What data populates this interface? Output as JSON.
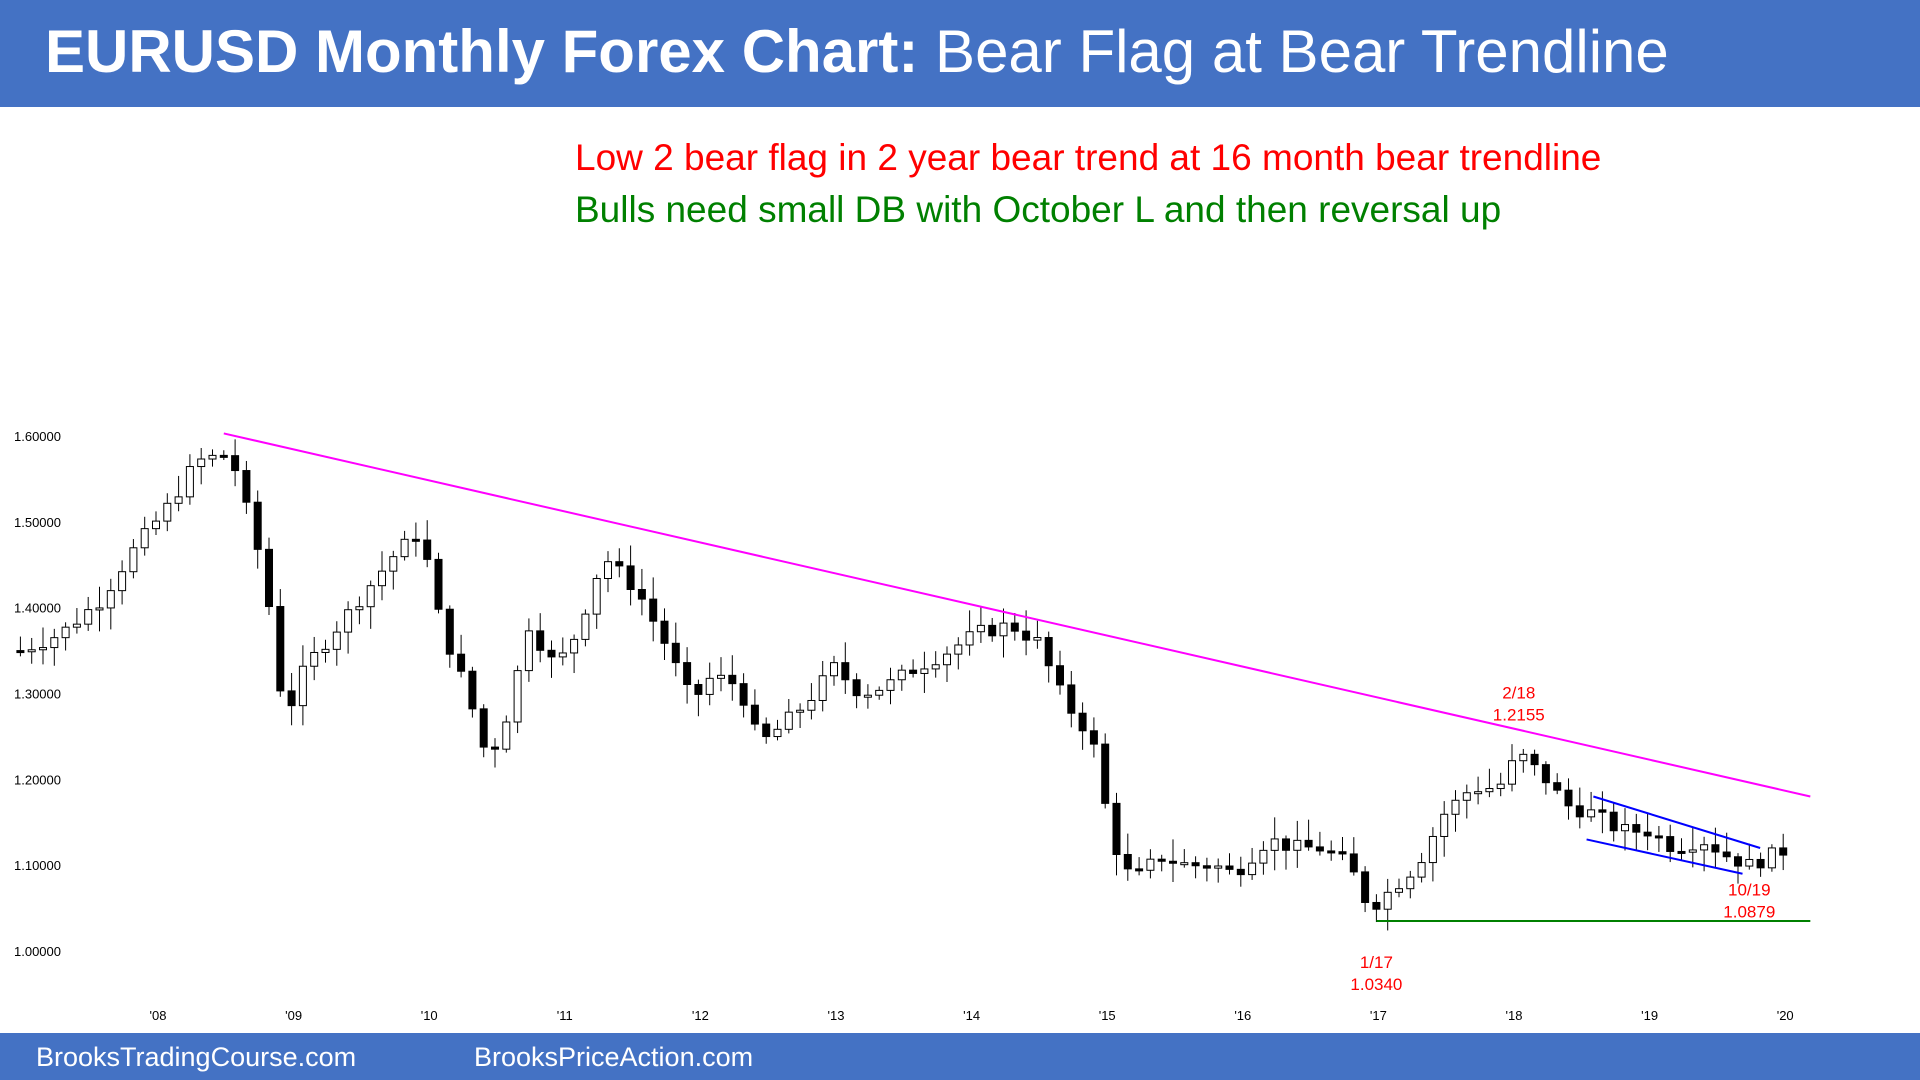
{
  "slide": {
    "title_bold": "EURUSD Monthly Forex Chart:",
    "title_regular": "Bear Flag at Bear Trendline",
    "line1": "Low 2 bear flag in 2 year bear trend at 16 month bear trendline",
    "line2": "Bulls need small DB with October L and then reversal up",
    "footer_left": "BrooksTradingCourse.com",
    "footer_right": "BrooksPriceAction.com"
  },
  "colors": {
    "title_bar": "#4472c4",
    "line1": "#ff0000",
    "line2": "#008000",
    "trendline": "#ff00ff",
    "channel": "#0000ff",
    "support": "#008000",
    "annotation": "#ff0000"
  },
  "chart_data": {
    "type": "candlestick",
    "instrument": "EURUSD",
    "timeframe": "monthly",
    "ylim": [
      1.0,
      1.6
    ],
    "yticks": [
      "1.60000",
      "1.50000",
      "1.40000",
      "1.30000",
      "1.20000",
      "1.10000",
      "1.00000"
    ],
    "xticks": [
      {
        "label": "'08",
        "year": 2008
      },
      {
        "label": "'09",
        "year": 2009
      },
      {
        "label": "'10",
        "year": 2010
      },
      {
        "label": "'11",
        "year": 2011
      },
      {
        "label": "'12",
        "year": 2012
      },
      {
        "label": "'13",
        "year": 2013
      },
      {
        "label": "'14",
        "year": 2014
      },
      {
        "label": "'15",
        "year": 2015
      },
      {
        "label": "'16",
        "year": 2016
      },
      {
        "label": "'17",
        "year": 2017
      },
      {
        "label": "'18",
        "year": 2018
      },
      {
        "label": "'19",
        "year": 2019
      },
      {
        "label": "'20",
        "year": 2020
      }
    ],
    "close_path": [
      [
        2007.0,
        1.35
      ],
      [
        2007.3,
        1.37
      ],
      [
        2007.6,
        1.41
      ],
      [
        2007.8,
        1.46
      ],
      [
        2008.1,
        1.52
      ],
      [
        2008.3,
        1.57
      ],
      [
        2008.55,
        1.58
      ],
      [
        2008.8,
        1.44
      ],
      [
        2008.95,
        1.27
      ],
      [
        2009.1,
        1.33
      ],
      [
        2009.3,
        1.37
      ],
      [
        2009.5,
        1.41
      ],
      [
        2009.75,
        1.46
      ],
      [
        2009.95,
        1.49
      ],
      [
        2010.1,
        1.38
      ],
      [
        2010.3,
        1.3
      ],
      [
        2010.45,
        1.22
      ],
      [
        2010.6,
        1.28
      ],
      [
        2010.75,
        1.38
      ],
      [
        2010.95,
        1.33
      ],
      [
        2011.1,
        1.37
      ],
      [
        2011.3,
        1.46
      ],
      [
        2011.55,
        1.42
      ],
      [
        2011.75,
        1.36
      ],
      [
        2011.95,
        1.29
      ],
      [
        2012.1,
        1.32
      ],
      [
        2012.3,
        1.31
      ],
      [
        2012.45,
        1.24
      ],
      [
        2012.6,
        1.26
      ],
      [
        2012.8,
        1.29
      ],
      [
        2013.0,
        1.33
      ],
      [
        2013.2,
        1.3
      ],
      [
        2013.4,
        1.31
      ],
      [
        2013.6,
        1.33
      ],
      [
        2013.85,
        1.35
      ],
      [
        2014.05,
        1.37
      ],
      [
        2014.3,
        1.38
      ],
      [
        2014.5,
        1.36
      ],
      [
        2014.7,
        1.29
      ],
      [
        2014.9,
        1.25
      ],
      [
        2015.05,
        1.13
      ],
      [
        2015.2,
        1.08
      ],
      [
        2015.4,
        1.11
      ],
      [
        2015.6,
        1.1
      ],
      [
        2015.8,
        1.1
      ],
      [
        2015.95,
        1.09
      ],
      [
        2016.2,
        1.13
      ],
      [
        2016.4,
        1.12
      ],
      [
        2016.6,
        1.12
      ],
      [
        2016.8,
        1.1
      ],
      [
        2016.95,
        1.05
      ],
      [
        2017.1,
        1.07
      ],
      [
        2017.3,
        1.1
      ],
      [
        2017.5,
        1.16
      ],
      [
        2017.7,
        1.19
      ],
      [
        2017.9,
        1.19
      ],
      [
        2018.05,
        1.23
      ],
      [
        2018.25,
        1.2
      ],
      [
        2018.4,
        1.17
      ],
      [
        2018.6,
        1.16
      ],
      [
        2018.8,
        1.14
      ],
      [
        2019.0,
        1.14
      ],
      [
        2019.2,
        1.12
      ],
      [
        2019.4,
        1.13
      ],
      [
        2019.6,
        1.11
      ],
      [
        2019.75,
        1.1
      ],
      [
        2019.9,
        1.11
      ],
      [
        2020.05,
        1.12
      ]
    ],
    "lines": [
      {
        "name": "bear trendline",
        "points": [
          [
            2008.5,
            1.603
          ],
          [
            2020.2,
            1.18
          ]
        ]
      },
      {
        "name": "bear channel top",
        "points": [
          [
            2018.6,
            1.18
          ],
          [
            2019.83,
            1.12
          ]
        ]
      },
      {
        "name": "bear channel bottom",
        "points": [
          [
            2018.55,
            1.13
          ],
          [
            2019.7,
            1.09
          ]
        ]
      },
      {
        "name": "support",
        "points": [
          [
            2017.0,
            1.035
          ],
          [
            2020.2,
            1.035
          ]
        ]
      }
    ],
    "annotations": [
      {
        "name": "high-2-18",
        "date": "2/18",
        "price": "1.2155",
        "x": 2018.05,
        "y": 1.215
      },
      {
        "name": "low-1-17",
        "date": "1/17",
        "price": "1.0340",
        "x": 2017.0,
        "y": 1.034
      },
      {
        "name": "low-10-19",
        "date": "10/19",
        "price": "1.0879",
        "x": 2019.75,
        "y": 1.088
      }
    ]
  }
}
